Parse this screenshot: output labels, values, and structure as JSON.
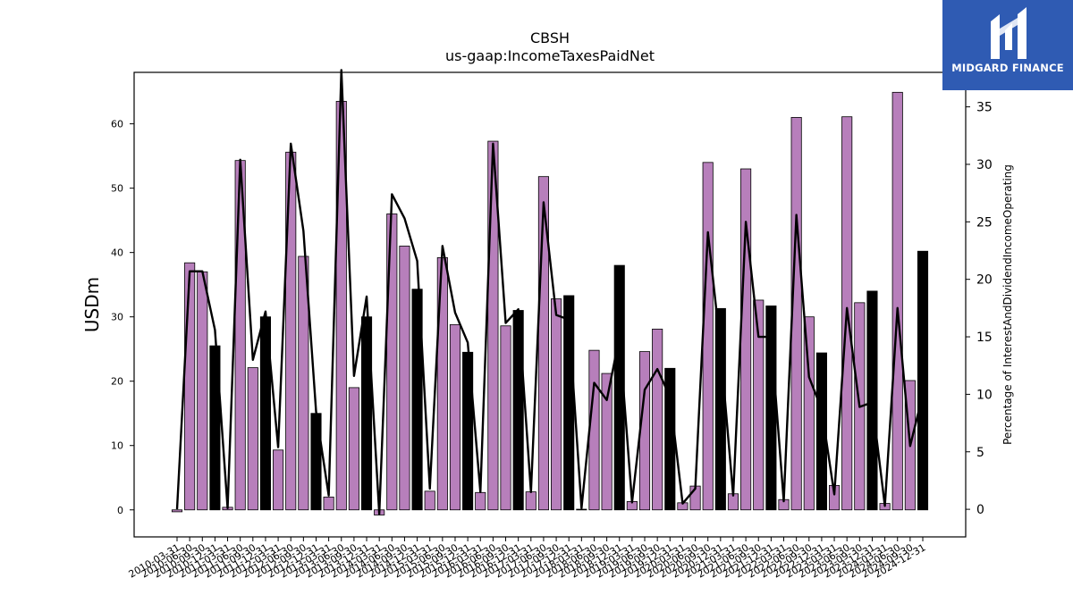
{
  "chart_data": {
    "type": "bar+line",
    "title": "CBSH",
    "subtitle": "us-gaap:IncomeTaxesPaidNet",
    "ylabel": "USDm",
    "y2label": "Percentage of InterestAndDividendIncomeOperating",
    "ylim": [
      -4.2,
      68
    ],
    "y2lim": [
      -2.4,
      38.0
    ],
    "yticks": [
      0,
      10,
      20,
      30,
      40,
      50,
      60
    ],
    "y2ticks": [
      0,
      5,
      10,
      15,
      20,
      25,
      30,
      35
    ],
    "grid": false,
    "bar_colors": {
      "quarter": "#b77fbb",
      "year_end": "#000000"
    },
    "line_color": "#000000",
    "x": [
      "2010-03-31",
      "2010-06-30",
      "2010-09-30",
      "2010-12-31",
      "2011-03-31",
      "2011-06-30",
      "2011-09-30",
      "2011-12-31",
      "2012-03-31",
      "2012-06-30",
      "2012-09-30",
      "2012-12-31",
      "2013-03-31",
      "2013-06-30",
      "2013-09-30",
      "2013-12-31",
      "2014-03-31",
      "2014-06-30",
      "2014-09-30",
      "2014-12-31",
      "2015-03-31",
      "2015-06-30",
      "2015-09-30",
      "2015-12-31",
      "2016-03-31",
      "2016-06-30",
      "2016-09-30",
      "2016-12-31",
      "2017-03-31",
      "2017-06-30",
      "2017-09-30",
      "2017-12-31",
      "2018-03-31",
      "2018-06-30",
      "2018-09-30",
      "2018-12-31",
      "2019-03-31",
      "2019-06-30",
      "2019-09-30",
      "2019-12-31",
      "2020-03-31",
      "2020-06-30",
      "2020-09-30",
      "2020-12-31",
      "2021-03-31",
      "2021-06-30",
      "2021-09-30",
      "2021-12-31",
      "2022-03-31",
      "2022-06-30",
      "2022-09-30",
      "2022-12-31",
      "2023-03-31",
      "2023-06-30",
      "2023-09-30",
      "2023-12-31",
      "2024-03-31",
      "2024-06-30",
      "2024-09-30",
      "2024-12-31"
    ],
    "tick_labels": [
      "2010-03-31",
      "2010-06-30",
      "2010-09-30",
      "2010-12-31",
      "2011-03-31",
      "2011-06-30",
      "2011-09-30",
      "2011-12-31",
      "2012-03-31",
      "2012-06-30",
      "2012-09-30",
      "2012-12-31",
      "2013-03-31",
      "2013-06-30",
      "2013-09-30",
      "2013-12-31",
      "2014-03-31",
      "2014-06-30",
      "2014-09-30",
      "2014-12-31",
      "2015-03-31",
      "2015-06-30",
      "2015-09-30",
      "2015-12-31",
      "2016-03-31",
      "2016-06-30",
      "2016-09-30",
      "2016-12-31",
      "2017-03-31",
      "2017-06-30",
      "2017-09-30",
      "2017-12-31",
      "2018-03-31",
      "2018-06-30",
      "2018-09-30",
      "2018-12-31",
      "2019-03-31",
      "2019-06-30",
      "2019-09-30",
      "2019-12-31",
      "2020-03-31",
      "2020-06-30",
      "2020-09-30",
      "2020-12-31",
      "2021-03-31",
      "2021-06-30",
      "2021-09-30",
      "2021-12-31",
      "2022-03-31",
      "2022-06-30",
      "2022-09-30",
      "2022-12-31",
      "2023-03-31",
      "2023-06-30",
      "2023-09-30",
      "2023-12-31",
      "2024-03-31",
      "2024-06-30",
      "2024-09-30",
      "2024-12-31"
    ],
    "bar_values": [
      -0.3,
      38.4,
      37.0,
      25.5,
      0.4,
      54.3,
      22.1,
      30.0,
      9.3,
      55.6,
      39.4,
      15.0,
      2.0,
      63.5,
      19.0,
      30.0,
      -0.8,
      46.0,
      41.0,
      34.3,
      2.9,
      39.2,
      28.8,
      24.5,
      2.7,
      57.3,
      28.6,
      31.0,
      2.8,
      51.8,
      32.8,
      33.3,
      0.1,
      24.8,
      21.2,
      38.0,
      1.3,
      24.6,
      28.1,
      22.0,
      1.1,
      3.7,
      54.0,
      31.3,
      2.5,
      53.0,
      32.6,
      31.7,
      1.6,
      61.0,
      30.0,
      24.4,
      3.8,
      61.1,
      32.2,
      34.0,
      1.0,
      64.9,
      20.1,
      40.2
    ],
    "line_values": [
      0.0,
      20.7,
      20.7,
      15.6,
      0.1,
      30.4,
      13.0,
      17.2,
      5.4,
      31.8,
      24.2,
      8.5,
      1.2,
      38.2,
      11.6,
      18.5,
      -0.4,
      27.4,
      25.3,
      21.6,
      1.8,
      22.9,
      17.1,
      14.5,
      1.5,
      31.8,
      16.2,
      17.4,
      1.5,
      26.7,
      16.9,
      16.5,
      0.1,
      11.0,
      9.5,
      15.0,
      0.6,
      10.4,
      12.2,
      9.8,
      0.5,
      1.8,
      24.1,
      14.0,
      1.2,
      25.0,
      15.0,
      15.0,
      0.7,
      25.6,
      11.5,
      8.7,
      1.3,
      17.5,
      8.9,
      9.3,
      0.3,
      17.5,
      5.5,
      10.0
    ]
  },
  "watermark": {
    "text": "MIDGARD FINANCE",
    "bg_color": "#2f5bb3"
  }
}
